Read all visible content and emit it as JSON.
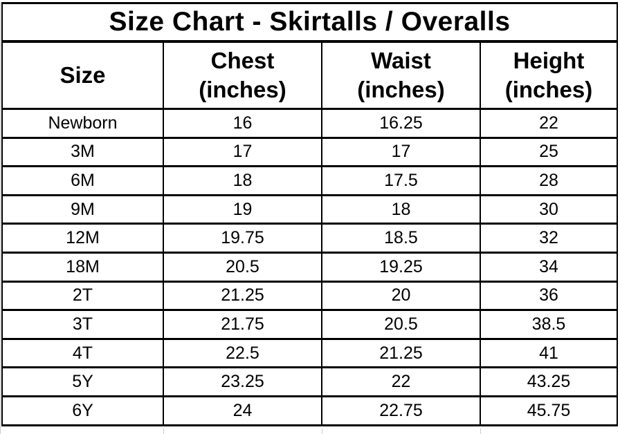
{
  "title": "Size Chart - Skirtalls / Overalls",
  "colors": {
    "border": "#000000",
    "text": "#000000",
    "background": "#ffffff",
    "faint_gridline": "#c9c9c9"
  },
  "chart_data": {
    "type": "table",
    "title": "Size Chart - Skirtalls / Overalls",
    "columns": [
      {
        "label": "Size",
        "unit": ""
      },
      {
        "label": "Chest",
        "unit": "(inches)"
      },
      {
        "label": "Waist",
        "unit": "(inches)"
      },
      {
        "label": "Height",
        "unit": "(inches)"
      }
    ],
    "rows": [
      {
        "size": "Newborn",
        "chest": "16",
        "waist": "16.25",
        "height": "22"
      },
      {
        "size": "3M",
        "chest": "17",
        "waist": "17",
        "height": "25"
      },
      {
        "size": "6M",
        "chest": "18",
        "waist": "17.5",
        "height": "28"
      },
      {
        "size": "9M",
        "chest": "19",
        "waist": "18",
        "height": "30"
      },
      {
        "size": "12M",
        "chest": "19.75",
        "waist": "18.5",
        "height": "32"
      },
      {
        "size": "18M",
        "chest": "20.5",
        "waist": "19.25",
        "height": "34"
      },
      {
        "size": "2T",
        "chest": "21.25",
        "waist": "20",
        "height": "36"
      },
      {
        "size": "3T",
        "chest": "21.75",
        "waist": "20.5",
        "height": "38.5"
      },
      {
        "size": "4T",
        "chest": "22.5",
        "waist": "21.25",
        "height": "41"
      },
      {
        "size": "5Y",
        "chest": "23.25",
        "waist": "22",
        "height": "43.25"
      },
      {
        "size": "6Y",
        "chest": "24",
        "waist": "22.75",
        "height": "45.75"
      }
    ]
  }
}
